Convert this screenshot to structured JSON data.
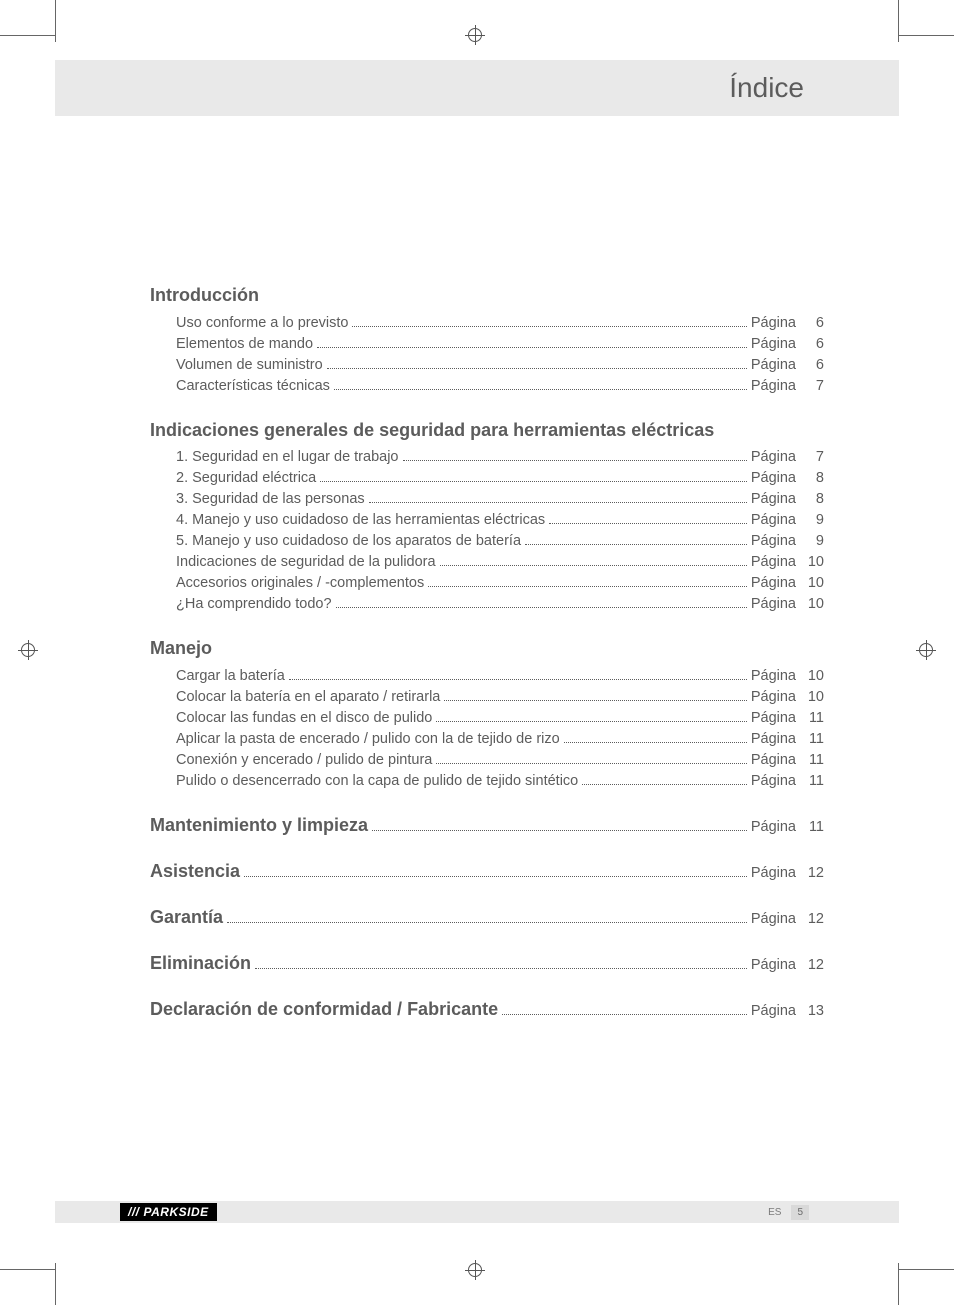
{
  "page": {
    "header_title": "Índice",
    "page_word": "Página",
    "footer": {
      "brand_prefix": "///",
      "brand_name": "PARKSIDE",
      "lang_code": "ES",
      "page_number": "5"
    },
    "colors": {
      "background": "#ffffff",
      "header_band": "#e9e9e9",
      "footer_band": "#e9e9e9",
      "text": "#5c5c5c",
      "brand_black": "#000000",
      "footer_page_bg": "#d9d9d9"
    },
    "typography": {
      "header_title_pt": 21,
      "section_title_pt": 14,
      "body_pt": 11,
      "footer_pt": 8,
      "font_family": "Helvetica / Futura-like sans-serif"
    }
  },
  "toc": [
    {
      "title": "Introducción",
      "title_page": null,
      "items": [
        {
          "label": "Uso conforme a lo previsto",
          "page": "6"
        },
        {
          "label": "Elementos de mando",
          "page": "6"
        },
        {
          "label": "Volumen de suministro",
          "page": "6"
        },
        {
          "label": "Características técnicas",
          "page": "7"
        }
      ]
    },
    {
      "title": "Indicaciones generales de seguridad para herramientas eléctricas",
      "title_page": null,
      "items": [
        {
          "label": "1. Seguridad en el lugar de trabajo",
          "page": "7"
        },
        {
          "label": "2. Seguridad eléctrica",
          "page": "8"
        },
        {
          "label": "3. Seguridad de las personas",
          "page": "8"
        },
        {
          "label": "4. Manejo y uso cuidadoso de las herramientas eléctricas",
          "page": "9"
        },
        {
          "label": "5. Manejo y uso cuidadoso de los aparatos de batería",
          "page": "9"
        },
        {
          "label": "Indicaciones de seguridad de la pulidora",
          "page": "10"
        },
        {
          "label": "Accesorios originales / -complementos",
          "page": "10"
        },
        {
          "label": "¿Ha comprendido todo?",
          "page": "10"
        }
      ]
    },
    {
      "title": "Manejo",
      "title_page": null,
      "items": [
        {
          "label": "Cargar la batería",
          "page": "10"
        },
        {
          "label": "Colocar la batería en el aparato / retirarla",
          "page": "10"
        },
        {
          "label": "Colocar las fundas en el disco de pulido",
          "page": "11"
        },
        {
          "label": "Aplicar la pasta de encerado / pulido con la de tejido de rizo",
          "page": "11"
        },
        {
          "label": "Conexión y encerado / pulido de pintura",
          "page": "11"
        },
        {
          "label": "Pulido o desencerrado con la capa de pulido de tejido sintético",
          "page": "11"
        }
      ]
    },
    {
      "title": "Mantenimiento y limpieza",
      "title_page": "11",
      "items": []
    },
    {
      "title": "Asistencia",
      "title_page": "12",
      "items": []
    },
    {
      "title": "Garantía",
      "title_page": "12",
      "items": []
    },
    {
      "title": "Eliminación",
      "title_page": "12",
      "items": []
    },
    {
      "title": "Declaración de conformidad / Fabricante",
      "title_page": "13",
      "items": []
    }
  ]
}
